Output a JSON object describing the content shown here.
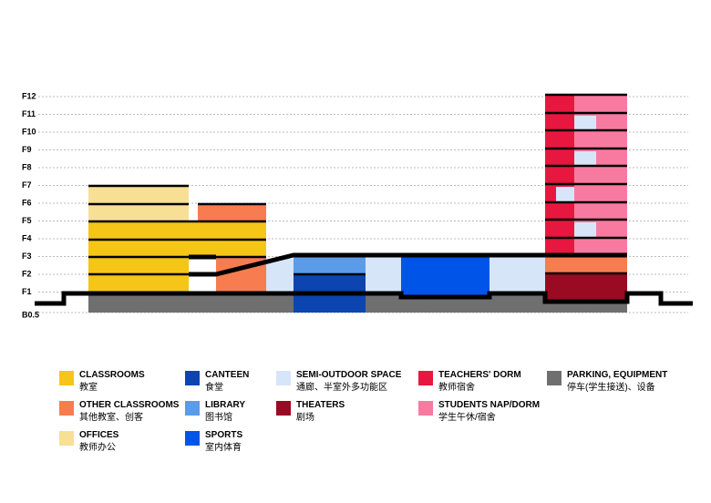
{
  "floors": [
    "F12",
    "F11",
    "F10",
    "F9",
    "F8",
    "F7",
    "F6",
    "F5",
    "F4",
    "F3",
    "F2",
    "F1",
    "B0.5"
  ],
  "legend": [
    {
      "label": "CLASSROOMS",
      "sublabel": "教室"
    },
    {
      "label": "OTHER CLASSROOMS",
      "sublabel": "其他教室、创客"
    },
    {
      "label": "OFFICES",
      "sublabel": "教师办公"
    },
    {
      "label": "CANTEEN",
      "sublabel": "食堂"
    },
    {
      "label": "LIBRARY",
      "sublabel": "图书馆"
    },
    {
      "label": "SPORTS",
      "sublabel": "室内体育"
    },
    {
      "label": "SEMI-OUTDOOR SPACE",
      "sublabel": "通廊、半室外多功能区"
    },
    {
      "label": "THEATERS",
      "sublabel": "剧场"
    },
    {
      "label": "TEACHERS' DORM",
      "sublabel": "教师宿舍"
    },
    {
      "label": "STUDENTS NAP/DORM",
      "sublabel": "学生午休/宿舍"
    },
    {
      "label": "PARKING, EQUIPMENT",
      "sublabel": "停车(学生接送)、设备"
    }
  ]
}
